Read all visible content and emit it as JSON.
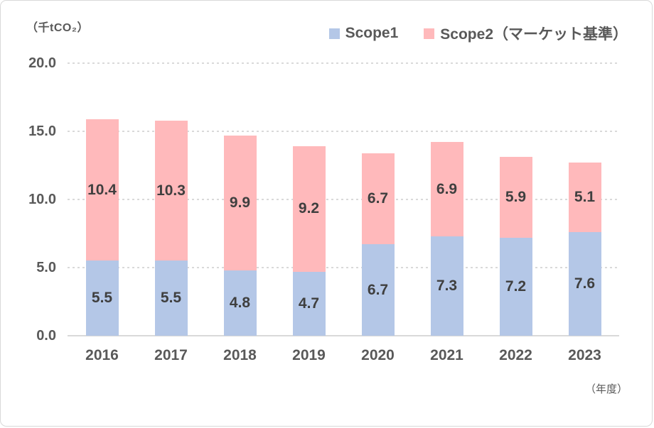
{
  "chart_data": {
    "type": "bar",
    "stacked": true,
    "title": "",
    "unit_label": "（千tCO₂）",
    "xaxis_unit_label": "（年度）",
    "categories": [
      "2016",
      "2017",
      "2018",
      "2019",
      "2020",
      "2021",
      "2022",
      "2023"
    ],
    "series": [
      {
        "name": "Scope1",
        "color": "#b4c7e7",
        "values": [
          5.5,
          5.5,
          4.8,
          4.7,
          6.7,
          7.3,
          7.2,
          7.6
        ]
      },
      {
        "name": "Scope2（マーケット基準）",
        "color": "#ffb9bb",
        "values": [
          10.4,
          10.3,
          9.9,
          9.2,
          6.7,
          6.9,
          5.9,
          5.1
        ]
      }
    ],
    "y_ticks": [
      "0.0",
      "5.0",
      "10.0",
      "15.0",
      "20.0"
    ],
    "y_tick_values": [
      0,
      5,
      10,
      15,
      20
    ],
    "ylim": [
      0,
      20
    ],
    "grid": "horizontal-dotted",
    "legend_position": "top-right",
    "colors": {
      "value_label": "#3f3f3f",
      "axis_text": "#595959",
      "gridline": "#d9d9d9",
      "card_border": "#d9d9d9",
      "background": "#ffffff"
    }
  }
}
